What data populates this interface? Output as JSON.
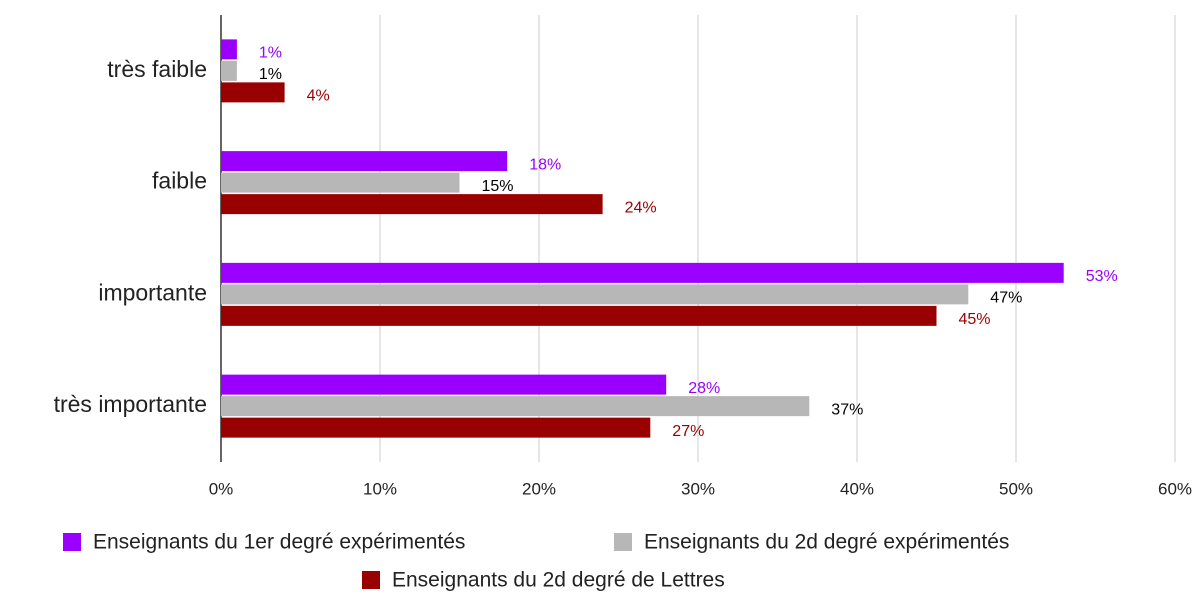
{
  "chart_data": {
    "type": "bar",
    "orientation": "horizontal",
    "categories": [
      "très faible",
      "faible",
      "importante",
      "très importante"
    ],
    "series": [
      {
        "name": "Enseignants du 1er degré expérimentés",
        "color": "#9900ff",
        "label_color": "#9900ff",
        "values": [
          1,
          18,
          53,
          28
        ],
        "value_labels": [
          "1%",
          "18%",
          "53%",
          "28%"
        ]
      },
      {
        "name": "Enseignants du 2d degré expérimentés",
        "color": "#b7b7b7",
        "label_color": "#000000",
        "values": [
          1,
          15,
          47,
          37
        ],
        "value_labels": [
          "1%",
          "15%",
          "47%",
          "37%"
        ]
      },
      {
        "name": "Enseignants du 2d degré de Lettres",
        "color": "#990000",
        "label_color": "#990000",
        "values": [
          4,
          24,
          45,
          27
        ],
        "value_labels": [
          "4%",
          "24%",
          "45%",
          "27%"
        ]
      }
    ],
    "xlim": [
      0,
      60
    ],
    "xticks": [
      {
        "value": 0,
        "label": "0%"
      },
      {
        "value": 10,
        "label": "10%"
      },
      {
        "value": 20,
        "label": "20%"
      },
      {
        "value": 30,
        "label": "30%"
      },
      {
        "value": 40,
        "label": "40%"
      },
      {
        "value": 50,
        "label": "50%"
      },
      {
        "value": 60,
        "label": "60%"
      }
    ],
    "grid": true,
    "legend": "bottom"
  }
}
